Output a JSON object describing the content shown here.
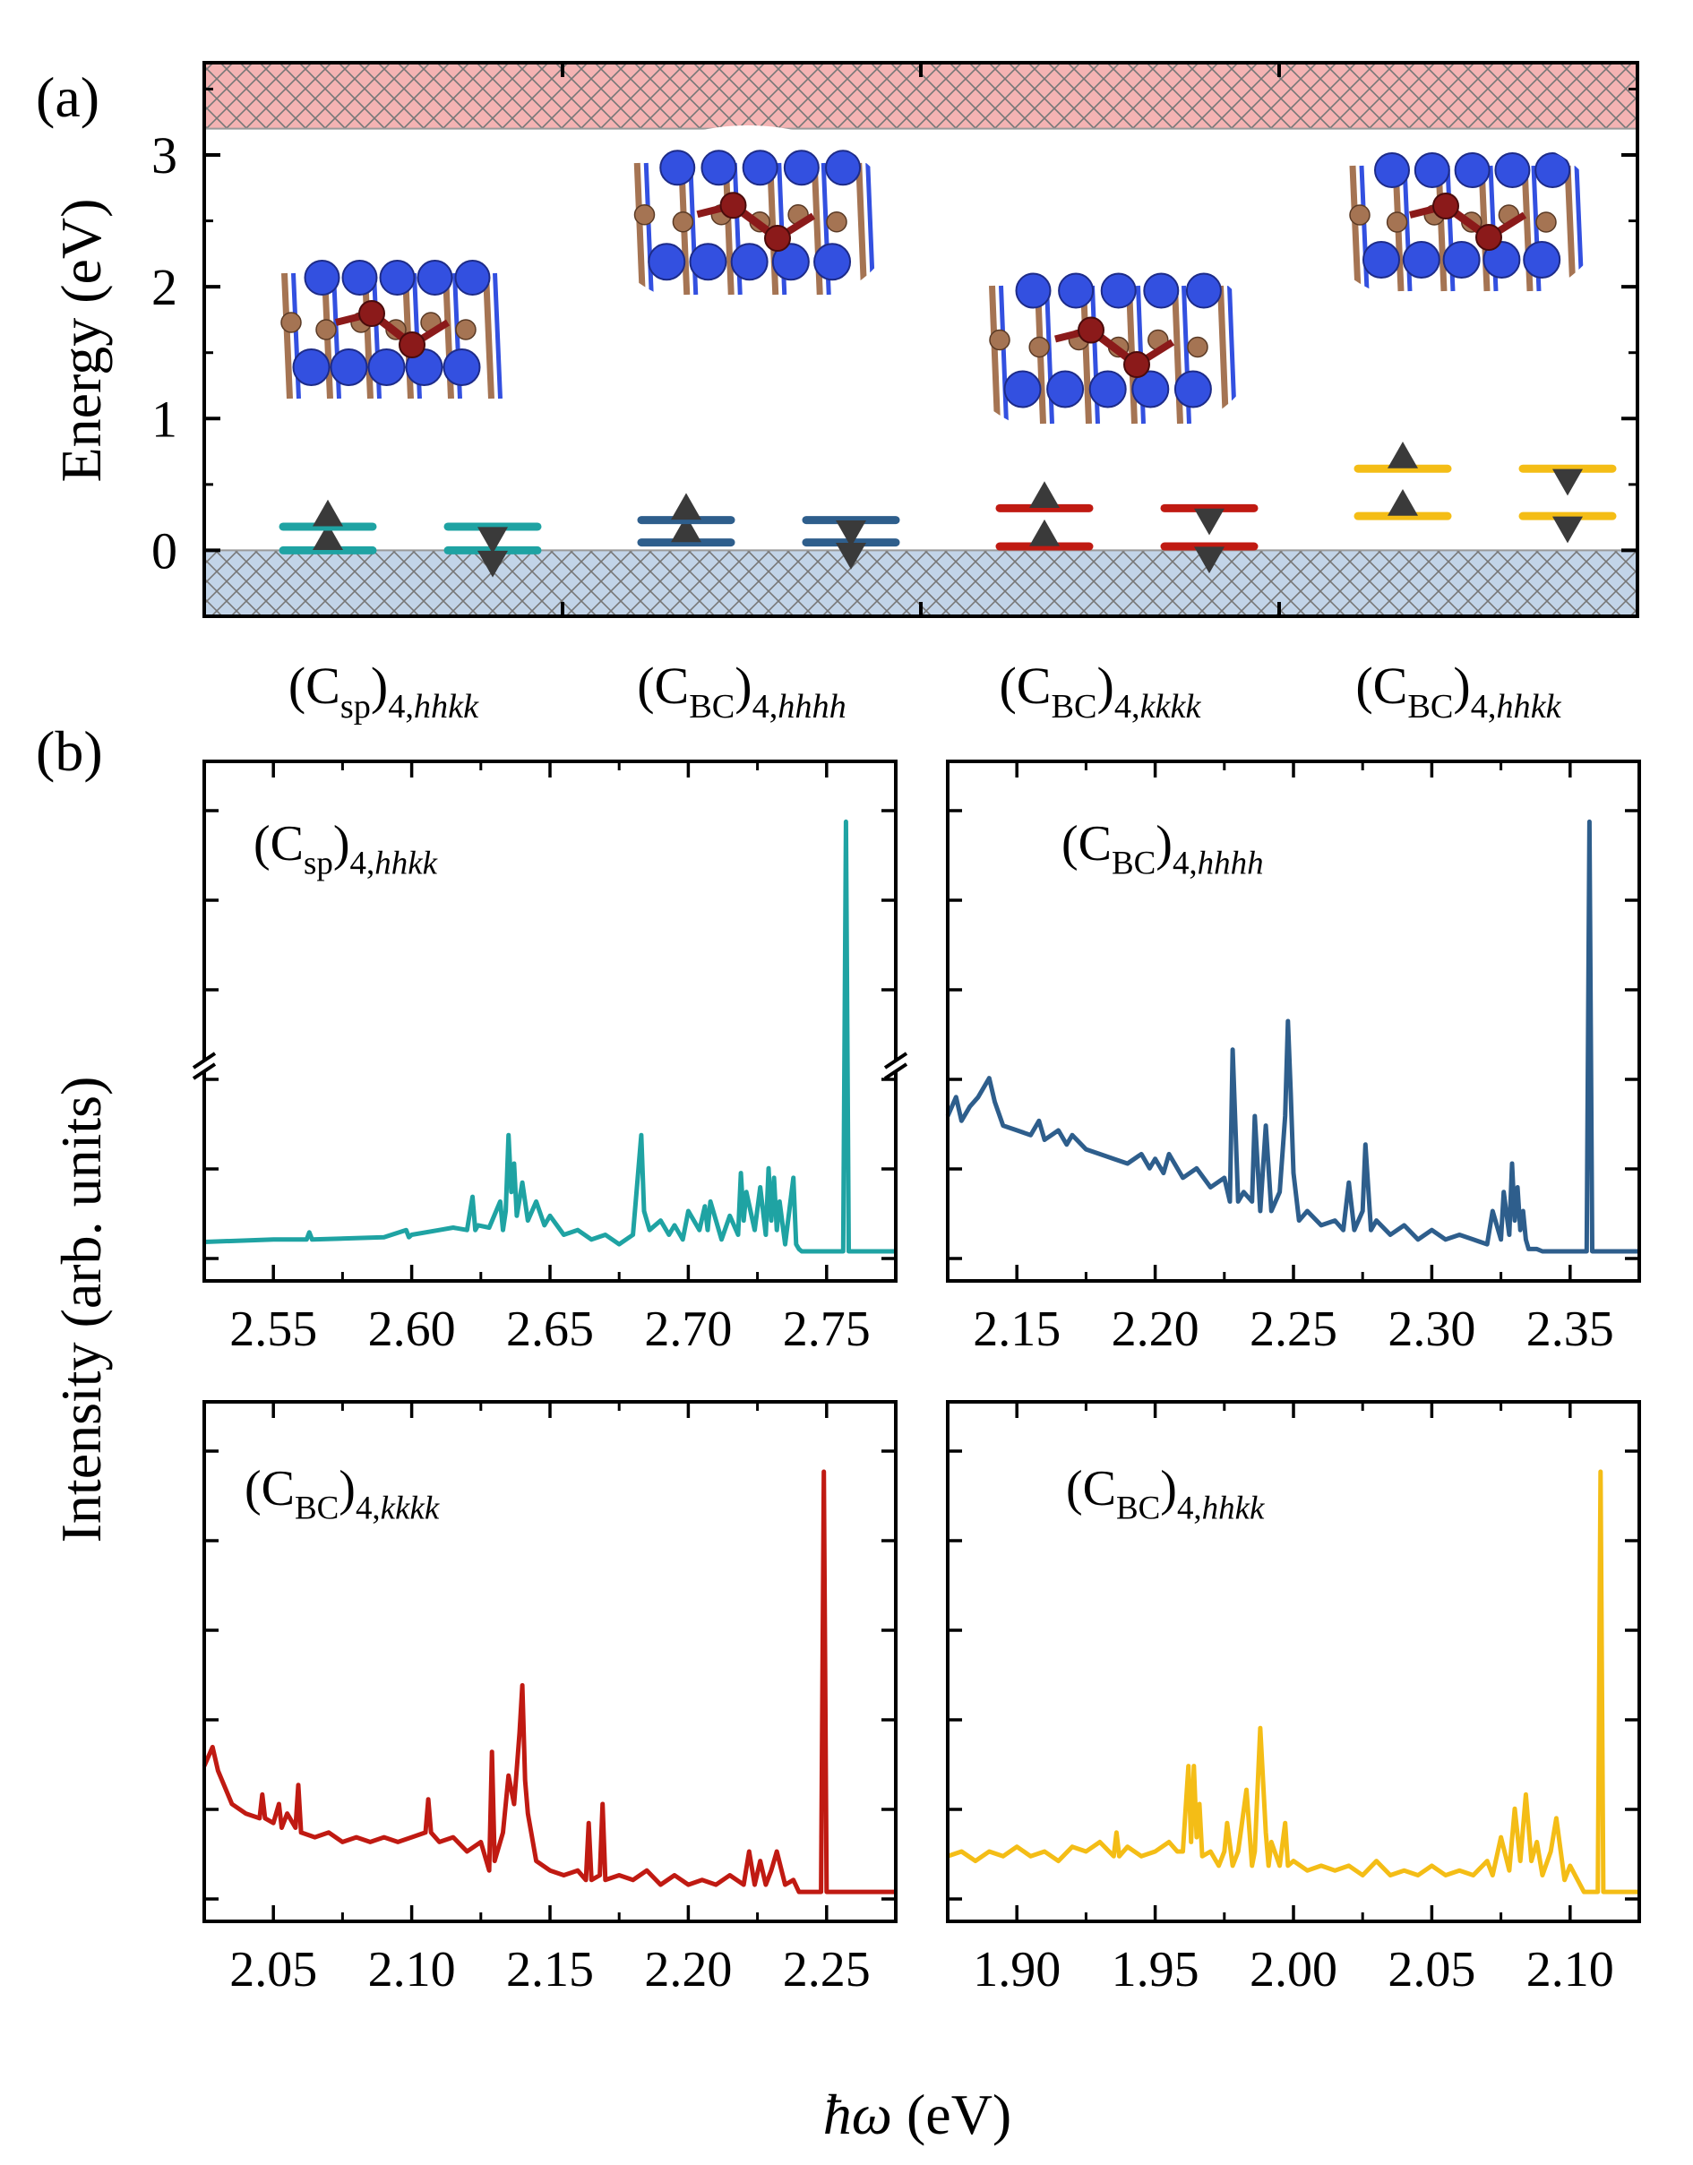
{
  "panels": {
    "a_label": "(a)",
    "b_label": "(b)"
  },
  "colors": {
    "csp_hhkk": "#1fa3a3",
    "cbc_hhhh": "#2e5e8c",
    "cbc_kkkk": "#c01a12",
    "cbc_hhkk": "#f4bd16",
    "conduction_band": "#f4b3b3",
    "valence_band": "#c2d4e8",
    "spin_marker": "#3a3a3a",
    "atom_carbon": "#a57453",
    "atom_nitrogen": "#3350e0",
    "atom_defect": "#8b1a1a"
  },
  "icons": {
    "spin_up": "triangle-up",
    "spin_down": "triangle-down"
  },
  "chart_data": [
    {
      "type": "line",
      "panel": "a",
      "ylabel": "Energy (eV)",
      "ylim": [
        -0.5,
        3.7
      ],
      "yticks": [
        "0",
        "1",
        "2",
        "3"
      ],
      "ytick_values": [
        0,
        1,
        2,
        3
      ],
      "conduction_band_min": 3.2,
      "valence_band_max": 0.0,
      "categories": [
        {
          "main": "(C",
          "sub1": "sp",
          "close": ")",
          "sub2": "4,",
          "sub2i": "hhkk"
        },
        {
          "main": "(C",
          "sub1": "BC",
          "close": ")",
          "sub2": "4,",
          "sub2i": "hhhh"
        },
        {
          "main": "(C",
          "sub1": "BC",
          "close": ")",
          "sub2": "4,",
          "sub2i": "kkkk"
        },
        {
          "main": "(C",
          "sub1": "BC",
          "close": ")",
          "sub2": "4,",
          "sub2i": "hhkk"
        }
      ],
      "levels": [
        {
          "color_key": "csp_hhkk",
          "spin_up": [
            0.0,
            0.18
          ],
          "spin_down": [
            0.0,
            0.18
          ]
        },
        {
          "color_key": "cbc_hhhh",
          "spin_up": [
            0.06,
            0.23
          ],
          "spin_down": [
            0.06,
            0.23
          ]
        },
        {
          "color_key": "cbc_kkkk",
          "spin_up": [
            0.03,
            0.32
          ],
          "spin_down": [
            0.03,
            0.32
          ]
        },
        {
          "color_key": "cbc_hhkk",
          "spin_up": [
            0.26,
            0.62
          ],
          "spin_down": [
            0.26,
            0.62
          ]
        }
      ]
    },
    {
      "type": "line",
      "panel": "b1",
      "annotation": {
        "main": "(C",
        "sub1": "sp",
        "close": ")",
        "sub2": "4,",
        "sub2i": "hhkk"
      },
      "color_key": "csp_hhkk",
      "xlim": [
        2.525,
        2.775
      ],
      "xticks": [
        "2.55",
        "2.60",
        "2.65",
        "2.70",
        "2.75"
      ],
      "xtick_values": [
        2.55,
        2.6,
        2.65,
        2.7,
        2.75
      ],
      "ylim": [
        0,
        1
      ],
      "broken_axis": true,
      "x": [
        2.525,
        2.55,
        2.562,
        2.563,
        2.564,
        2.59,
        2.598,
        2.599,
        2.6,
        2.61,
        2.615,
        2.62,
        2.622,
        2.623,
        2.624,
        2.628,
        2.632,
        2.633,
        2.634,
        2.635,
        2.636,
        2.637,
        2.638,
        2.64,
        2.642,
        2.645,
        2.648,
        2.65,
        2.655,
        2.66,
        2.665,
        2.67,
        2.675,
        2.68,
        2.683,
        2.684,
        2.685,
        2.686,
        2.69,
        2.693,
        2.695,
        2.698,
        2.7,
        2.704,
        2.706,
        2.707,
        2.708,
        2.71,
        2.712,
        2.715,
        2.718,
        2.719,
        2.72,
        2.721,
        2.724,
        2.726,
        2.728,
        2.729,
        2.73,
        2.731,
        2.732,
        2.733,
        2.735,
        2.738,
        2.739,
        2.74,
        2.741,
        2.745,
        2.75,
        2.756,
        2.757,
        2.758,
        2.759,
        2.76,
        2.775
      ],
      "y": [
        0.035,
        0.04,
        0.04,
        0.055,
        0.04,
        0.045,
        0.06,
        0.045,
        0.05,
        0.06,
        0.065,
        0.06,
        0.13,
        0.06,
        0.07,
        0.065,
        0.12,
        0.06,
        0.1,
        0.26,
        0.14,
        0.2,
        0.09,
        0.16,
        0.08,
        0.12,
        0.07,
        0.09,
        0.05,
        0.06,
        0.04,
        0.05,
        0.03,
        0.05,
        0.26,
        0.1,
        0.08,
        0.06,
        0.08,
        0.05,
        0.07,
        0.04,
        0.1,
        0.06,
        0.11,
        0.06,
        0.12,
        0.08,
        0.04,
        0.09,
        0.05,
        0.18,
        0.08,
        0.14,
        0.06,
        0.15,
        0.05,
        0.19,
        0.08,
        0.17,
        0.06,
        0.12,
        0.03,
        0.17,
        0.03,
        0.02,
        0.015,
        0.015,
        0.015,
        0.015,
        0.92,
        0.015,
        0.015,
        0.015,
        0.015
      ]
    },
    {
      "type": "line",
      "panel": "b2",
      "annotation": {
        "main": "(C",
        "sub1": "BC",
        "close": ")",
        "sub2": "4,",
        "sub2i": "hhhh"
      },
      "color_key": "cbc_hhhh",
      "xlim": [
        2.125,
        2.375
      ],
      "xticks": [
        "2.15",
        "2.20",
        "2.25",
        "2.30",
        "2.35"
      ],
      "xtick_values": [
        2.15,
        2.2,
        2.25,
        2.3,
        2.35
      ],
      "ylim": [
        0,
        1
      ],
      "x": [
        2.125,
        2.128,
        2.13,
        2.133,
        2.136,
        2.14,
        2.142,
        2.145,
        2.15,
        2.155,
        2.158,
        2.16,
        2.165,
        2.168,
        2.17,
        2.175,
        2.18,
        2.185,
        2.19,
        2.195,
        2.198,
        2.2,
        2.203,
        2.205,
        2.21,
        2.215,
        2.22,
        2.225,
        2.227,
        2.228,
        2.23,
        2.232,
        2.235,
        2.236,
        2.238,
        2.24,
        2.242,
        2.245,
        2.247,
        2.248,
        2.249,
        2.25,
        2.252,
        2.255,
        2.26,
        2.265,
        2.268,
        2.27,
        2.272,
        2.275,
        2.276,
        2.278,
        2.28,
        2.285,
        2.29,
        2.295,
        2.3,
        2.305,
        2.31,
        2.315,
        2.32,
        2.322,
        2.325,
        2.326,
        2.328,
        2.329,
        2.33,
        2.331,
        2.332,
        2.333,
        2.334,
        2.335,
        2.338,
        2.34,
        2.345,
        2.35,
        2.355,
        2.356,
        2.357,
        2.358,
        2.36,
        2.375
      ],
      "y": [
        0.3,
        0.34,
        0.29,
        0.32,
        0.34,
        0.38,
        0.33,
        0.28,
        0.27,
        0.26,
        0.29,
        0.25,
        0.27,
        0.24,
        0.26,
        0.23,
        0.22,
        0.21,
        0.2,
        0.22,
        0.19,
        0.21,
        0.18,
        0.22,
        0.17,
        0.19,
        0.15,
        0.17,
        0.12,
        0.44,
        0.12,
        0.14,
        0.12,
        0.3,
        0.1,
        0.28,
        0.1,
        0.14,
        0.3,
        0.5,
        0.35,
        0.18,
        0.08,
        0.1,
        0.07,
        0.08,
        0.06,
        0.16,
        0.06,
        0.1,
        0.24,
        0.06,
        0.08,
        0.05,
        0.07,
        0.04,
        0.06,
        0.04,
        0.05,
        0.04,
        0.03,
        0.1,
        0.04,
        0.14,
        0.05,
        0.2,
        0.08,
        0.15,
        0.06,
        0.1,
        0.04,
        0.02,
        0.02,
        0.015,
        0.015,
        0.015,
        0.015,
        0.015,
        0.92,
        0.015,
        0.015,
        0.015
      ]
    },
    {
      "type": "line",
      "panel": "b3",
      "annotation": {
        "main": "(C",
        "sub1": "BC",
        "close": ")",
        "sub2": "4,",
        "sub2i": "kkkk"
      },
      "color_key": "cbc_kkkk",
      "xlim": [
        2.025,
        2.275
      ],
      "xticks": [
        "2.05",
        "2.10",
        "2.15",
        "2.20",
        "2.25"
      ],
      "xtick_values": [
        2.05,
        2.1,
        2.15,
        2.2,
        2.25
      ],
      "ylim": [
        0,
        1
      ],
      "x": [
        2.025,
        2.028,
        2.03,
        2.035,
        2.04,
        2.045,
        2.046,
        2.047,
        2.05,
        2.052,
        2.053,
        2.055,
        2.058,
        2.059,
        2.06,
        2.065,
        2.07,
        2.075,
        2.08,
        2.085,
        2.09,
        2.095,
        2.1,
        2.105,
        2.106,
        2.107,
        2.11,
        2.115,
        2.12,
        2.125,
        2.128,
        2.129,
        2.13,
        2.133,
        2.135,
        2.137,
        2.139,
        2.14,
        2.141,
        2.142,
        2.145,
        2.15,
        2.155,
        2.16,
        2.163,
        2.164,
        2.165,
        2.168,
        2.169,
        2.17,
        2.175,
        2.18,
        2.185,
        2.19,
        2.195,
        2.2,
        2.205,
        2.21,
        2.215,
        2.22,
        2.222,
        2.224,
        2.226,
        2.228,
        2.23,
        2.232,
        2.235,
        2.238,
        2.24,
        2.248,
        2.249,
        2.25,
        2.251,
        2.255,
        2.275
      ],
      "y": [
        0.28,
        0.32,
        0.27,
        0.2,
        0.18,
        0.17,
        0.22,
        0.17,
        0.16,
        0.2,
        0.15,
        0.18,
        0.15,
        0.24,
        0.14,
        0.13,
        0.14,
        0.12,
        0.13,
        0.12,
        0.13,
        0.12,
        0.13,
        0.14,
        0.21,
        0.14,
        0.12,
        0.13,
        0.1,
        0.12,
        0.06,
        0.31,
        0.08,
        0.14,
        0.26,
        0.2,
        0.35,
        0.45,
        0.25,
        0.18,
        0.08,
        0.06,
        0.05,
        0.06,
        0.04,
        0.16,
        0.04,
        0.05,
        0.2,
        0.04,
        0.05,
        0.04,
        0.06,
        0.03,
        0.05,
        0.03,
        0.04,
        0.03,
        0.05,
        0.03,
        0.1,
        0.03,
        0.08,
        0.03,
        0.06,
        0.1,
        0.03,
        0.04,
        0.015,
        0.015,
        0.9,
        0.015,
        0.015,
        0.015,
        0.015
      ]
    },
    {
      "type": "line",
      "panel": "b4",
      "annotation": {
        "main": "(C",
        "sub1": "BC",
        "close": ")",
        "sub2": "4,",
        "sub2i": "hhkk"
      },
      "color_key": "cbc_hhkk",
      "xlim": [
        1.875,
        2.125
      ],
      "xticks": [
        "1.90",
        "1.95",
        "2.00",
        "2.05",
        "2.10"
      ],
      "xtick_values": [
        1.9,
        1.95,
        2.0,
        2.05,
        2.1
      ],
      "ylim": [
        0,
        1
      ],
      "x": [
        1.875,
        1.88,
        1.885,
        1.89,
        1.895,
        1.9,
        1.905,
        1.91,
        1.915,
        1.92,
        1.925,
        1.93,
        1.935,
        1.936,
        1.937,
        1.94,
        1.945,
        1.95,
        1.955,
        1.958,
        1.96,
        1.962,
        1.963,
        1.964,
        1.965,
        1.966,
        1.967,
        1.97,
        1.973,
        1.975,
        1.976,
        1.978,
        1.98,
        1.983,
        1.985,
        1.986,
        1.988,
        1.99,
        1.991,
        1.992,
        1.995,
        1.997,
        1.998,
        2.0,
        2.005,
        2.01,
        2.015,
        2.02,
        2.025,
        2.03,
        2.035,
        2.04,
        2.045,
        2.05,
        2.055,
        2.06,
        2.065,
        2.07,
        2.072,
        2.075,
        2.078,
        2.08,
        2.082,
        2.084,
        2.086,
        2.088,
        2.09,
        2.093,
        2.095,
        2.098,
        2.1,
        2.105,
        2.11,
        2.111,
        2.112,
        2.113,
        2.115,
        2.125
      ],
      "y": [
        0.09,
        0.1,
        0.08,
        0.1,
        0.09,
        0.11,
        0.09,
        0.1,
        0.08,
        0.11,
        0.1,
        0.12,
        0.09,
        0.14,
        0.09,
        0.11,
        0.09,
        0.1,
        0.12,
        0.1,
        0.1,
        0.28,
        0.12,
        0.28,
        0.13,
        0.2,
        0.09,
        0.1,
        0.07,
        0.1,
        0.16,
        0.07,
        0.1,
        0.23,
        0.07,
        0.1,
        0.36,
        0.14,
        0.07,
        0.12,
        0.07,
        0.16,
        0.07,
        0.08,
        0.06,
        0.07,
        0.06,
        0.07,
        0.05,
        0.08,
        0.05,
        0.06,
        0.05,
        0.07,
        0.05,
        0.06,
        0.05,
        0.08,
        0.05,
        0.13,
        0.06,
        0.19,
        0.08,
        0.22,
        0.08,
        0.12,
        0.05,
        0.1,
        0.17,
        0.04,
        0.07,
        0.015,
        0.015,
        0.9,
        0.015,
        0.015,
        0.015,
        0.015
      ]
    }
  ],
  "shared": {
    "ylabel": "Intensity (arb. units)",
    "xlabel": "ħω (eV)"
  }
}
